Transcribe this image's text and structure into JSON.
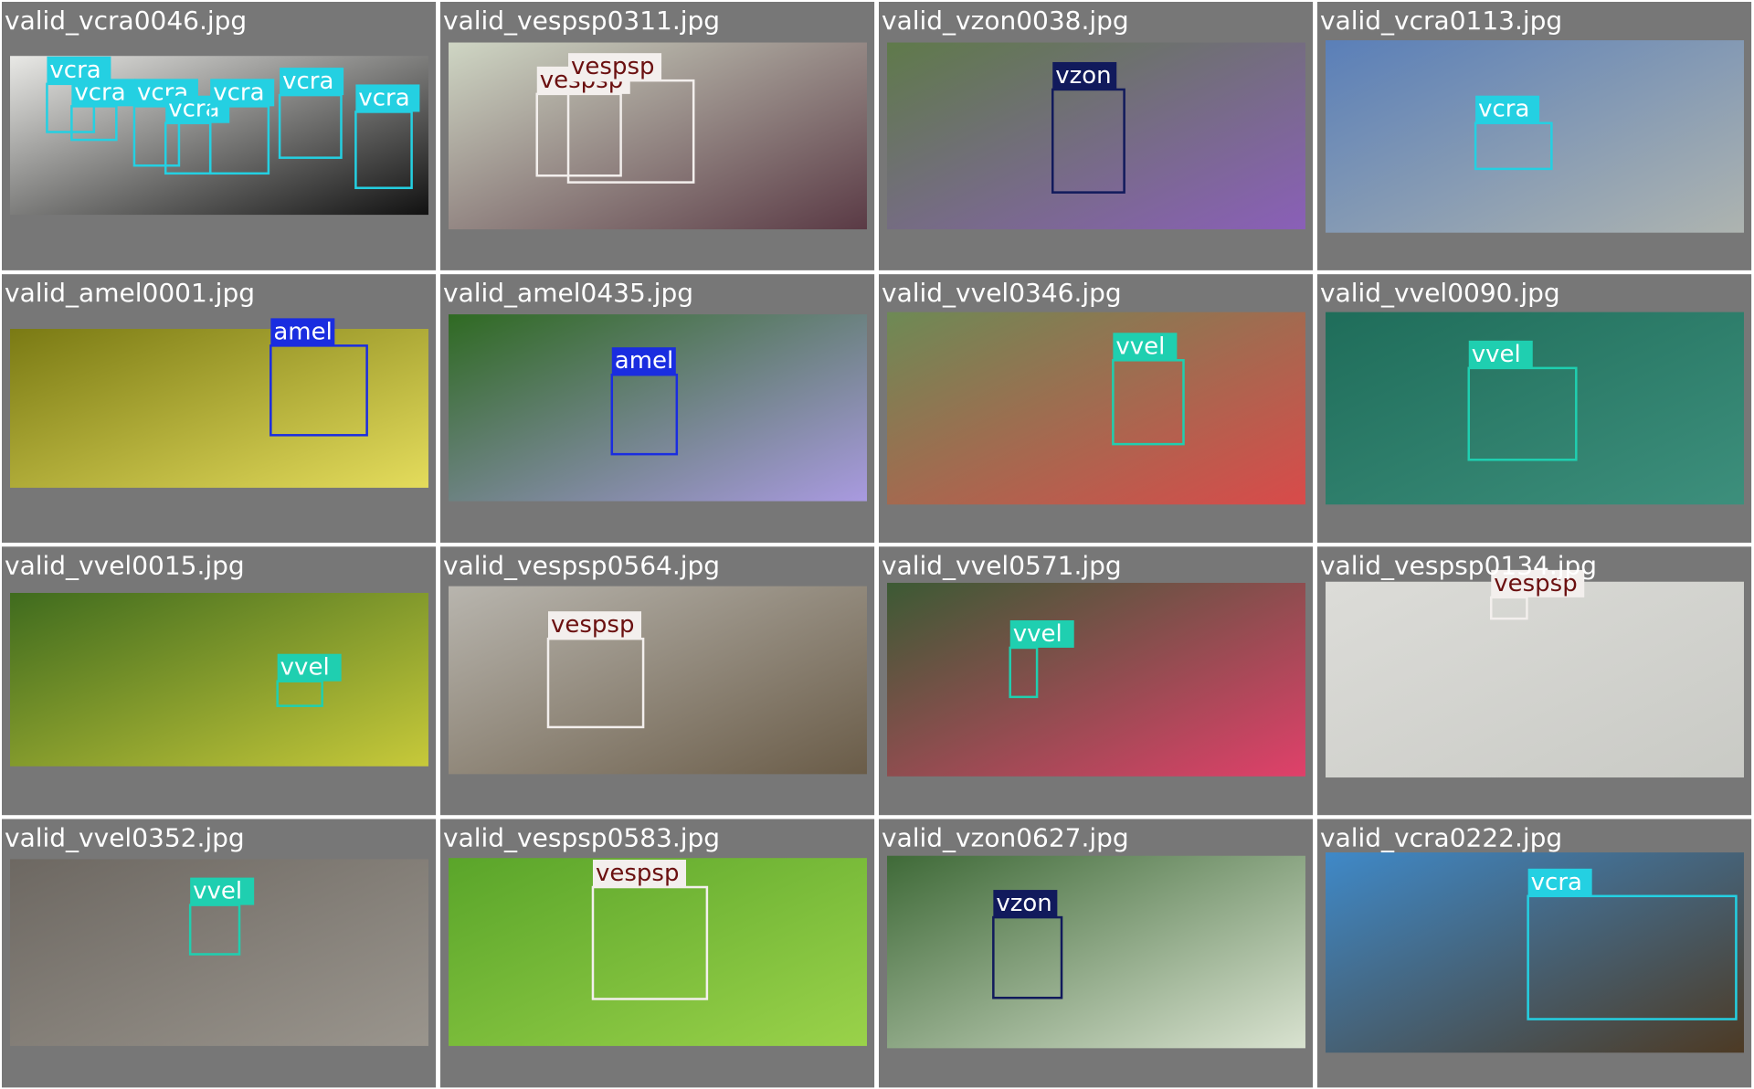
{
  "tiles": [
    {
      "filename": "valid_vcra0046.jpg",
      "boxes": [
        {
          "label": "vcra",
          "color": "#24d0e2"
        },
        {
          "label": "vcra",
          "color": "#24d0e2"
        },
        {
          "label": "vcra",
          "color": "#24d0e2"
        },
        {
          "label": "vcra",
          "color": "#24d0e2"
        },
        {
          "label": "vcra",
          "color": "#24d0e2"
        },
        {
          "label": "vcra",
          "color": "#24d0e2"
        },
        {
          "label": "vcra",
          "color": "#24d0e2"
        }
      ]
    },
    {
      "filename": "valid_vespsp0311.jpg",
      "boxes": [
        {
          "label": "vespsp",
          "color": "#f3efed"
        },
        {
          "label": "vespsp",
          "color": "#f3efed"
        }
      ]
    },
    {
      "filename": "valid_vzon0038.jpg",
      "boxes": [
        {
          "label": "vzon",
          "color": "#111a5c"
        }
      ]
    },
    {
      "filename": "valid_vcra0113.jpg",
      "boxes": [
        {
          "label": "vcra",
          "color": "#24d0e2"
        }
      ]
    },
    {
      "filename": "valid_amel0001.jpg",
      "boxes": [
        {
          "label": "amel",
          "color": "#1a2de0"
        }
      ]
    },
    {
      "filename": "valid_amel0435.jpg",
      "boxes": [
        {
          "label": "amel",
          "color": "#1a2de0"
        }
      ]
    },
    {
      "filename": "valid_vvel0346.jpg",
      "boxes": [
        {
          "label": "vvel",
          "color": "#1fcfb0"
        }
      ]
    },
    {
      "filename": "valid_vvel0090.jpg",
      "boxes": [
        {
          "label": "vvel",
          "color": "#1fcfb0"
        }
      ]
    },
    {
      "filename": "valid_vvel0015.jpg",
      "boxes": [
        {
          "label": "vvel",
          "color": "#1fcfb0"
        }
      ]
    },
    {
      "filename": "valid_vespsp0564.jpg",
      "boxes": [
        {
          "label": "vespsp",
          "color": "#f3efed"
        }
      ]
    },
    {
      "filename": "valid_vvel0571.jpg",
      "boxes": [
        {
          "label": "vvel",
          "color": "#1fcfb0"
        }
      ]
    },
    {
      "filename": "valid_vespsp0134.jpg",
      "boxes": [
        {
          "label": "vespsp",
          "color": "#f3efed"
        }
      ]
    },
    {
      "filename": "valid_vvel0352.jpg",
      "boxes": [
        {
          "label": "vvel",
          "color": "#1fcfb0"
        }
      ]
    },
    {
      "filename": "valid_vespsp0583.jpg",
      "boxes": [
        {
          "label": "vespsp",
          "color": "#f3efed"
        }
      ]
    },
    {
      "filename": "valid_vzon0627.jpg",
      "boxes": [
        {
          "label": "vzon",
          "color": "#111a5c"
        }
      ]
    },
    {
      "filename": "valid_vcra0222.jpg",
      "boxes": [
        {
          "label": "vcra",
          "color": "#24d0e2"
        }
      ]
    }
  ]
}
